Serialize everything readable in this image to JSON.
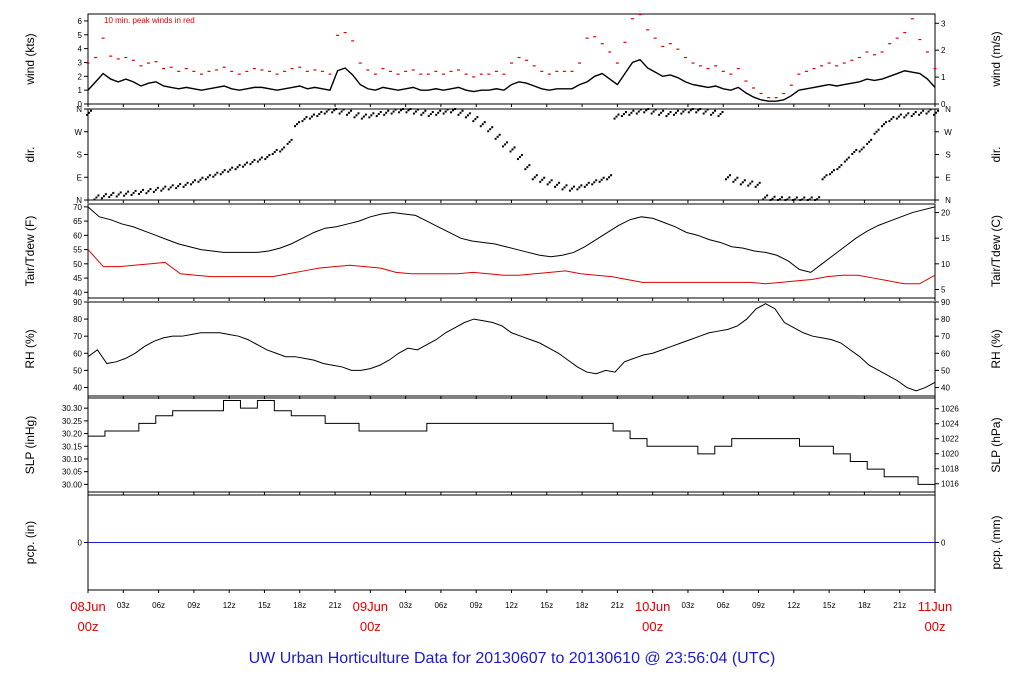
{
  "footer": "UW Urban Horticulture Data for 20130607  to  20130610 @ 23:56:04  (UTC)",
  "colors": {
    "axis": "#000000",
    "series": "#000000",
    "peak": "#e00000",
    "pcp": "#2020c8",
    "footer": "#1a1ad0",
    "day": "#e00000"
  },
  "chart_data": [
    {
      "type": "line",
      "ylabel": "wind (kts)",
      "ylabel_right": "wind (m/s)",
      "annotation": "10 min. peak winds in red",
      "yticks": [
        0,
        1,
        2,
        3,
        4,
        5,
        6
      ],
      "yticks_right": [
        0,
        1,
        2,
        3
      ],
      "ylim": [
        0,
        6.5
      ],
      "series": [
        {
          "values": [
            1.0,
            1.6,
            2.2,
            1.8,
            1.6,
            1.8,
            1.6,
            1.3,
            1.5,
            1.6,
            1.3,
            1.2,
            1.1,
            1.2,
            1.1,
            1.0,
            1.1,
            1.2,
            1.3,
            1.1,
            1.0,
            1.1,
            1.2,
            1.2,
            1.1,
            1.0,
            1.1,
            1.2,
            1.3,
            1.1,
            1.2,
            1.1,
            1.0,
            2.4,
            2.6,
            2.1,
            1.4,
            1.1,
            1.0,
            1.2,
            1.1,
            1.0,
            1.1,
            1.2,
            1.0,
            1.0,
            1.1,
            1.0,
            1.1,
            1.2,
            1.0,
            0.9,
            1.0,
            1.0,
            1.1,
            1.0,
            1.4,
            1.6,
            1.5,
            1.3,
            1.1,
            1.0,
            1.1,
            1.1,
            1.1,
            1.4,
            1.6,
            2.0,
            2.2,
            1.8,
            1.4,
            2.2,
            3.0,
            3.2,
            2.6,
            2.3,
            2.0,
            2.1,
            1.9,
            1.6,
            1.4,
            1.3,
            1.2,
            1.3,
            1.1,
            1.0,
            1.2,
            0.8,
            0.5,
            0.3,
            0.2,
            0.2,
            0.3,
            0.6,
            1.0,
            1.1,
            1.2,
            1.3,
            1.4,
            1.3,
            1.4,
            1.5,
            1.6,
            1.8,
            1.7,
            1.8,
            2.0,
            2.2,
            2.4,
            2.3,
            2.2,
            1.8,
            1.2
          ]
        },
        {
          "name": "10 min. peak winds",
          "values": [
            3.0,
            3.4,
            4.8,
            3.5,
            3.3,
            3.4,
            3.2,
            2.8,
            3.0,
            3.1,
            2.6,
            2.7,
            2.4,
            2.6,
            2.4,
            2.2,
            2.4,
            2.5,
            2.7,
            2.4,
            2.2,
            2.4,
            2.6,
            2.5,
            2.4,
            2.2,
            2.4,
            2.6,
            2.7,
            2.4,
            2.5,
            2.4,
            2.2,
            5.0,
            5.2,
            4.6,
            3.0,
            2.5,
            2.2,
            2.6,
            2.4,
            2.2,
            2.4,
            2.5,
            2.2,
            2.2,
            2.4,
            2.2,
            2.4,
            2.5,
            2.2,
            2.0,
            2.2,
            2.2,
            2.4,
            2.2,
            3.0,
            3.4,
            3.2,
            2.8,
            2.4,
            2.2,
            2.4,
            2.4,
            2.4,
            3.0,
            4.8,
            4.9,
            4.4,
            3.8,
            3.0,
            4.5,
            6.2,
            6.5,
            5.4,
            4.8,
            4.2,
            4.4,
            4.0,
            3.4,
            3.0,
            2.8,
            2.6,
            2.8,
            2.4,
            2.2,
            2.6,
            1.7,
            1.2,
            0.8,
            0.5,
            0.5,
            0.8,
            1.4,
            2.2,
            2.4,
            2.6,
            2.8,
            3.0,
            2.8,
            3.0,
            3.2,
            3.4,
            3.8,
            3.6,
            3.8,
            4.4,
            4.8,
            5.2,
            6.2,
            4.7,
            3.8,
            2.6
          ]
        }
      ]
    },
    {
      "type": "scatter",
      "ylabel": "dir.",
      "ylabel_right": "dir.",
      "yticks": [
        "N",
        "E",
        "S",
        "W",
        "N"
      ],
      "yticks_right": [
        "N",
        "E",
        "S",
        "W",
        "N"
      ],
      "ylim": [
        0,
        360
      ],
      "series": [
        {
          "values": [
            345,
            10,
            15,
            20,
            22,
            25,
            28,
            32,
            35,
            40,
            45,
            50,
            55,
            60,
            70,
            80,
            90,
            100,
            110,
            120,
            130,
            140,
            150,
            160,
            170,
            190,
            200,
            230,
            300,
            320,
            330,
            340,
            350,
            355,
            350,
            345,
            335,
            330,
            335,
            340,
            345,
            350,
            355,
            355,
            350,
            345,
            340,
            345,
            350,
            355,
            345,
            335,
            320,
            300,
            280,
            250,
            220,
            200,
            170,
            130,
            90,
            80,
            70,
            60,
            50,
            45,
            50,
            60,
            70,
            80,
            90,
            330,
            340,
            345,
            350,
            355,
            350,
            345,
            340,
            345,
            350,
            355,
            355,
            350,
            345,
            340,
            90,
            80,
            70,
            65,
            60,
            10,
            5,
            3,
            2,
            2,
            2,
            2,
            3,
            90,
            110,
            130,
            160,
            190,
            200,
            230,
            270,
            300,
            320,
            330,
            335,
            340,
            345,
            350,
            345
          ]
        }
      ]
    },
    {
      "type": "line",
      "ylabel": "Tair/Tdew (F)",
      "ylabel_right": "Tair/Tdew (C)",
      "yticks": [
        40,
        45,
        50,
        55,
        60,
        65,
        70
      ],
      "yticks_right": [
        5,
        10,
        15,
        20
      ],
      "ylim": [
        38,
        71
      ],
      "series": [
        {
          "name": "Tair",
          "values": [
            70.0,
            66.5,
            65.5,
            64.0,
            63.0,
            61.5,
            60.0,
            58.5,
            57.0,
            56.0,
            55.0,
            54.5,
            54.0,
            54.0,
            54.0,
            54.0,
            54.5,
            55.5,
            57.0,
            59.0,
            61.0,
            62.5,
            63.0,
            64.0,
            65.0,
            66.5,
            67.5,
            68.0,
            67.5,
            67.0,
            65.0,
            63.0,
            61.0,
            59.0,
            58.0,
            57.5,
            57.0,
            56.0,
            55.0,
            54.0,
            53.0,
            52.5,
            53.0,
            54.0,
            56.0,
            58.5,
            61.0,
            63.5,
            65.5,
            66.5,
            66.0,
            64.5,
            63.0,
            61.0,
            60.0,
            58.5,
            57.5,
            56.0,
            55.5,
            54.5,
            54.0,
            53.0,
            51.0,
            48.0,
            47.0,
            50.0,
            53.0,
            56.0,
            59.0,
            61.5,
            63.5,
            65.0,
            66.5,
            68.0,
            69.0,
            70.0
          ]
        },
        {
          "name": "Tdew",
          "values": [
            55.0,
            49.0,
            49.0,
            49.5,
            50.0,
            50.5,
            46.5,
            46.0,
            45.5,
            45.5,
            45.5,
            45.5,
            45.5,
            46.5,
            47.5,
            48.5,
            49.0,
            49.5,
            49.0,
            48.5,
            47.0,
            46.5,
            46.5,
            46.5,
            46.5,
            47.0,
            46.5,
            46.0,
            46.0,
            46.5,
            47.0,
            47.5,
            46.5,
            46.0,
            45.5,
            44.5,
            43.5,
            43.5,
            43.5,
            43.5,
            43.5,
            43.5,
            43.5,
            43.5,
            43.0,
            43.5,
            44.0,
            44.5,
            45.5,
            46.0,
            46.0,
            45.0,
            44.0,
            43.0,
            43.0,
            46.0
          ]
        }
      ]
    },
    {
      "type": "line",
      "ylabel": "RH (%)",
      "ylabel_right": "RH (%)",
      "yticks": [
        40,
        50,
        60,
        70,
        80,
        90
      ],
      "yticks_right": [
        40,
        50,
        60,
        70,
        80,
        90
      ],
      "ylim": [
        35,
        90
      ],
      "series": [
        {
          "values": [
            58,
            62,
            54,
            55,
            57,
            60,
            64,
            67,
            69,
            70,
            70,
            71,
            72,
            72,
            72,
            71,
            70,
            68,
            65,
            62,
            60,
            58,
            58,
            57,
            56,
            54,
            53,
            52,
            50,
            50,
            51,
            53,
            56,
            60,
            63,
            62,
            65,
            68,
            72,
            75,
            78,
            80,
            79,
            78,
            76,
            72,
            70,
            68,
            66,
            63,
            60,
            56,
            52,
            49,
            48,
            50,
            49,
            55,
            57,
            59,
            60,
            62,
            64,
            66,
            68,
            70,
            72,
            73,
            74,
            76,
            80,
            86,
            89,
            86,
            78,
            75,
            72,
            70,
            69,
            68,
            66,
            62,
            58,
            53,
            50,
            47,
            44,
            40,
            38,
            40,
            43
          ]
        }
      ]
    },
    {
      "type": "line",
      "ylabel": "SLP (inHg)",
      "ylabel_right": "SLP (hPa)",
      "yticks": [
        30.0,
        30.05,
        30.1,
        30.15,
        30.2,
        30.25,
        30.3
      ],
      "yticks_right": [
        1016,
        1018,
        1020,
        1022,
        1024,
        1026
      ],
      "ylim": [
        29.97,
        30.34
      ],
      "series": [
        {
          "values": [
            30.19,
            30.21,
            30.21,
            30.24,
            30.27,
            30.29,
            30.29,
            30.29,
            30.33,
            30.3,
            30.33,
            30.29,
            30.27,
            30.27,
            30.24,
            30.24,
            30.21,
            30.21,
            30.21,
            30.21,
            30.24,
            30.24,
            30.24,
            30.24,
            30.24,
            30.24,
            30.24,
            30.24,
            30.24,
            30.24,
            30.24,
            30.21,
            30.18,
            30.15,
            30.15,
            30.15,
            30.12,
            30.15,
            30.18,
            30.18,
            30.18,
            30.18,
            30.15,
            30.15,
            30.12,
            30.09,
            30.06,
            30.03,
            30.03,
            30.0,
            29.98
          ]
        }
      ]
    },
    {
      "type": "line",
      "ylabel": "pcp. (in)",
      "ylabel_right": "pcp. (mm)",
      "yticks": [
        0
      ],
      "yticks_right": [
        0
      ],
      "ylim": [
        -1,
        1
      ],
      "series": [
        {
          "values": [
            0,
            0
          ]
        }
      ]
    }
  ],
  "xaxis": {
    "ticks": [
      "00z",
      "03z",
      "06z",
      "09z",
      "12z",
      "15z",
      "18z",
      "21z",
      "00z",
      "03z",
      "06z",
      "09z",
      "12z",
      "15z",
      "18z",
      "21z",
      "00z",
      "03z",
      "06z",
      "09z",
      "12z",
      "15z",
      "18z",
      "21z",
      "00z"
    ],
    "days": [
      {
        "day": "08Jun",
        "time": "00z"
      },
      {
        "day": "09Jun",
        "time": "00z"
      },
      {
        "day": "10Jun",
        "time": "00z"
      },
      {
        "day": "11Jun",
        "time": "00z"
      }
    ]
  }
}
